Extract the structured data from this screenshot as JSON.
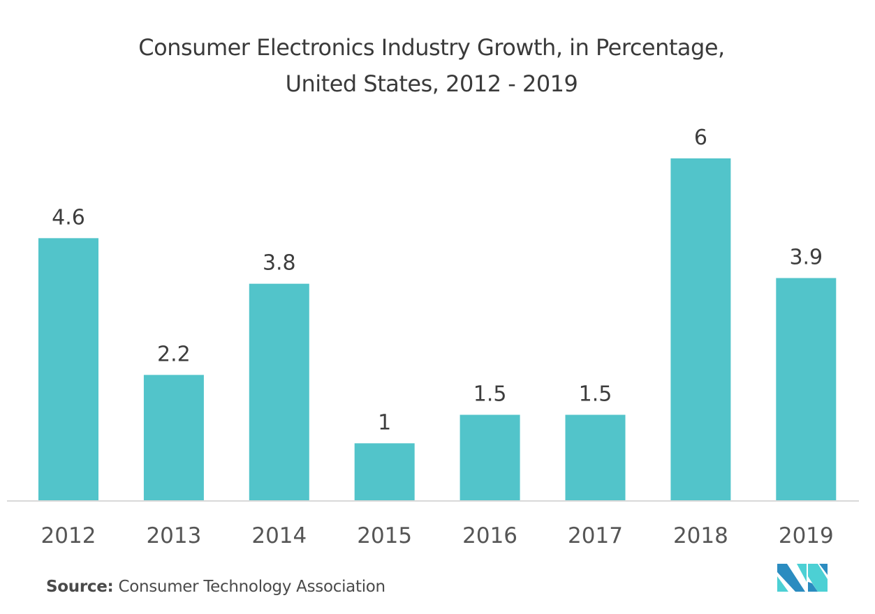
{
  "title_line1": "Consumer Electronics Industry Growth, in Percentage,",
  "title_line2": "United States, 2012 - 2019",
  "source_label": "Source:",
  "source_text": "Consumer Technology Association",
  "colors": {
    "bar": "#52c4ca",
    "axis": "#d9d9d9",
    "text": "#404040",
    "logo_dark": "#2b8cc0",
    "logo_light": "#4cd0d4"
  },
  "chart_data": {
    "type": "bar",
    "title": "Consumer Electronics Industry Growth, in Percentage, United States, 2012 - 2019",
    "xlabel": "",
    "ylabel": "",
    "categories": [
      "2012",
      "2013",
      "2014",
      "2015",
      "2016",
      "2017",
      "2018",
      "2019"
    ],
    "values": [
      4.6,
      2.2,
      3.8,
      1,
      1.5,
      1.5,
      6,
      3.9
    ],
    "data_labels": [
      "4.6",
      "2.2",
      "3.8",
      "1",
      "1.5",
      "1.5",
      "6",
      "3.9"
    ],
    "ylim": [
      0,
      6
    ],
    "grid": false,
    "legend": "none"
  }
}
